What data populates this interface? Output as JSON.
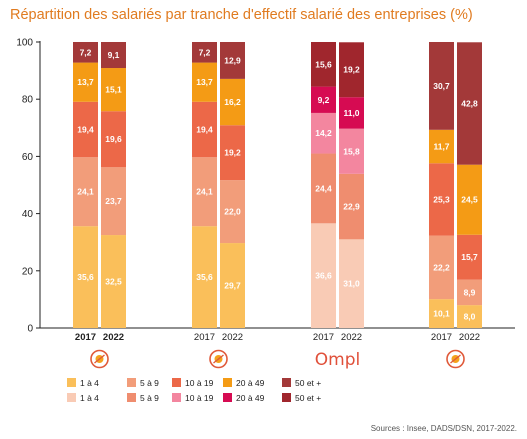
{
  "chart_data": {
    "type": "bar",
    "stacked": true,
    "title": "Répartition des salariés par tranche d'effectif salarié des entreprises (%)",
    "ylim": [
      0,
      100
    ],
    "yticks": [
      "0",
      "20",
      "40",
      "60",
      "80",
      "100"
    ],
    "grid": false,
    "groups": [
      {
        "logo": "aa",
        "x_labels": [
          "2017",
          "2022"
        ],
        "bold_labels": true,
        "palette": "orange",
        "stacks": [
          [
            35.6,
            24.1,
            19.4,
            13.7,
            7.2
          ],
          [
            32.5,
            23.7,
            19.6,
            15.1,
            9.1
          ]
        ],
        "labels": [
          [
            "35,6",
            "24,1",
            "19,4",
            "13,7",
            "7,2"
          ],
          [
            "32,5",
            "23,7",
            "19,6",
            "15,1",
            "9,1"
          ]
        ]
      },
      {
        "logo": "cb",
        "x_labels": [
          "2017",
          "2022"
        ],
        "bold_labels": false,
        "palette": "orange",
        "stacks": [
          [
            35.6,
            24.1,
            19.4,
            13.7,
            7.2
          ],
          [
            29.7,
            22.0,
            19.2,
            16.2,
            12.9
          ]
        ],
        "labels": [
          [
            "35,6",
            "24,1",
            "19,4",
            "13,7",
            "7,2"
          ],
          [
            "29,7",
            "22,0",
            "19,2",
            "16,2",
            "12,9"
          ]
        ]
      },
      {
        "logo": "ompl",
        "logo_text": "Ompl",
        "x_labels": [
          "2017",
          "2022"
        ],
        "bold_labels": false,
        "palette": "pink",
        "stacks": [
          [
            36.6,
            24.4,
            14.2,
            9.2,
            15.6
          ],
          [
            31.0,
            22.9,
            15.8,
            11.0,
            19.2
          ]
        ],
        "labels": [
          [
            "36,6",
            "24,4",
            "14,2",
            "9,2",
            "15,6"
          ],
          [
            "31,0",
            "22,9",
            "15,8",
            "11,0",
            "19,2"
          ]
        ]
      },
      {
        "logo": "ep",
        "x_labels": [
          "2017",
          "2022"
        ],
        "bold_labels": false,
        "palette": "orange",
        "stacks": [
          [
            10.1,
            22.2,
            25.3,
            11.7,
            30.7
          ],
          [
            8.0,
            8.9,
            15.7,
            24.5,
            42.8
          ]
        ],
        "labels": [
          [
            "10,1",
            "22,2",
            "25,3",
            "11,7",
            "30,7"
          ],
          [
            "8,0",
            "8,9",
            "15,7",
            "24,5",
            "42,8"
          ]
        ]
      }
    ],
    "palettes": {
      "orange": [
        "#fabf5a",
        "#f29d7a",
        "#ec6848",
        "#f49b15",
        "#a33939"
      ],
      "pink": [
        "#f9cbb5",
        "#ef8d6f",
        "#f3869f",
        "#d60b52",
        "#a0262d"
      ]
    },
    "legend": [
      {
        "row": 1,
        "items": [
          {
            "label": "1 à 4",
            "color": "#fabf5a"
          },
          {
            "label": "5 à 9",
            "color": "#f29d7a"
          },
          {
            "label": "10 à 19",
            "color": "#ec6848"
          },
          {
            "label": "20 à 49",
            "color": "#f49b15"
          },
          {
            "label": "50 et +",
            "color": "#a33939"
          }
        ]
      },
      {
        "row": 2,
        "items": [
          {
            "label": "1 à 4",
            "color": "#f9cbb5"
          },
          {
            "label": "5 à 9",
            "color": "#ef8d6f"
          },
          {
            "label": "10 à 19",
            "color": "#f3869f"
          },
          {
            "label": "20 à 49",
            "color": "#d60b52"
          },
          {
            "label": "50 et +",
            "color": "#a0262d"
          }
        ]
      }
    ]
  },
  "source": "Sources : Insee, DADS/DSN, 2017-2022.",
  "colors": {
    "title": "#e07b20",
    "accent": "#e05a3a"
  }
}
